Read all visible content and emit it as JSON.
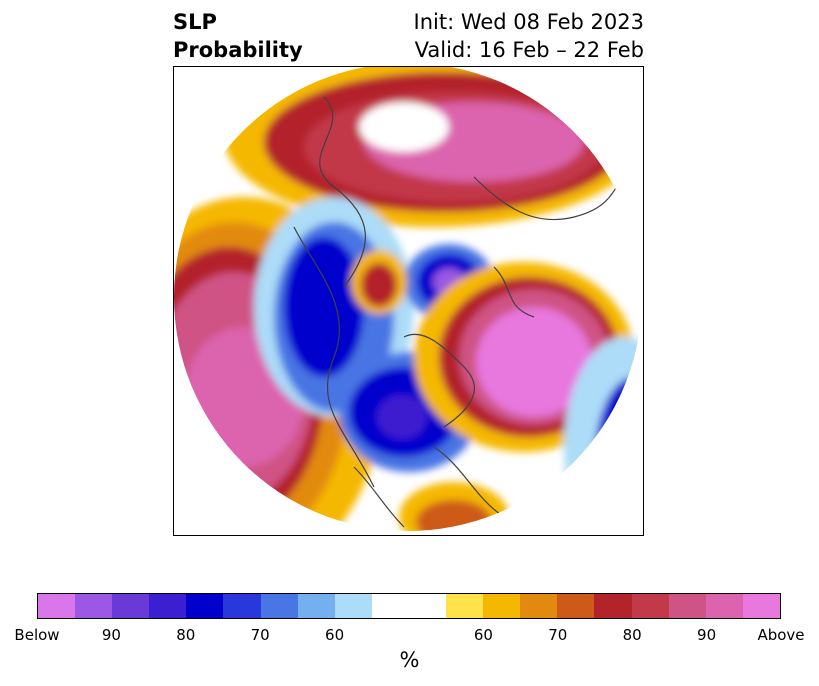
{
  "header": {
    "title_line1": "SLP",
    "title_line2": "Probability",
    "init_text": "Init: Wed 08 Feb 2023",
    "valid_text": "Valid: 16 Feb – 22 Feb"
  },
  "map": {
    "projection": "north-polar-stereographic"
  },
  "colorbar": {
    "unit_label": "%",
    "colors": [
      "#d977ea",
      "#9a58e4",
      "#6a3ad9",
      "#3c1fd0",
      "#0000cc",
      "#2838da",
      "#4a75e4",
      "#74aff0",
      "#acdcf8",
      "#ffffff",
      "#ffffff",
      "#ffe14a",
      "#f5b800",
      "#e28a10",
      "#cd5a18",
      "#b3232a",
      "#c2394a",
      "#cf5384",
      "#dc63ad",
      "#e877de"
    ],
    "tick_labels": [
      "Below",
      "90",
      "80",
      "70",
      "60",
      "60",
      "70",
      "80",
      "90",
      "Above"
    ]
  }
}
